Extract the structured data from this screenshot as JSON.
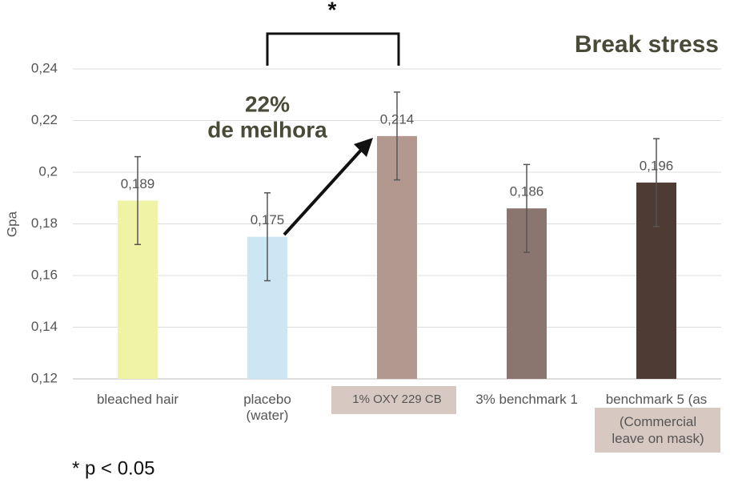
{
  "chart_data": {
    "type": "bar",
    "title": "Break stress",
    "y_label": "Gpa",
    "categories": [
      "bleached hair",
      "placebo\n(water)",
      "1% OXY 229 CB",
      "3% benchmark 1",
      "benchmark 5 (as"
    ],
    "values": [
      0.189,
      0.175,
      0.214,
      0.186,
      0.196
    ],
    "value_labels": [
      "0,189",
      "0,175",
      "0,214",
      "0,186",
      "0,196"
    ],
    "errors": [
      0.017,
      0.017,
      0.017,
      0.017,
      0.017
    ],
    "colors": [
      "#eef3a6",
      "#cde6f4",
      "#b39890",
      "#8a766f",
      "#4e3b33"
    ],
    "ylim": [
      0.12,
      0.24
    ],
    "yticks": [
      {
        "value": 0.12,
        "label": "0,12"
      },
      {
        "value": 0.14,
        "label": "0,14"
      },
      {
        "value": 0.16,
        "label": "0,16"
      },
      {
        "value": 0.18,
        "label": "0,18"
      },
      {
        "value": 0.2,
        "label": "0,2"
      },
      {
        "value": 0.22,
        "label": "0,22"
      },
      {
        "value": 0.24,
        "label": "0,24"
      }
    ],
    "grid": true,
    "annotations": {
      "significance": "*",
      "improvement_percent": "22%",
      "improvement_text": "de melhora",
      "footnote": "* p < 0.05",
      "category_note": "(Commercial\nleave on mask)"
    }
  }
}
